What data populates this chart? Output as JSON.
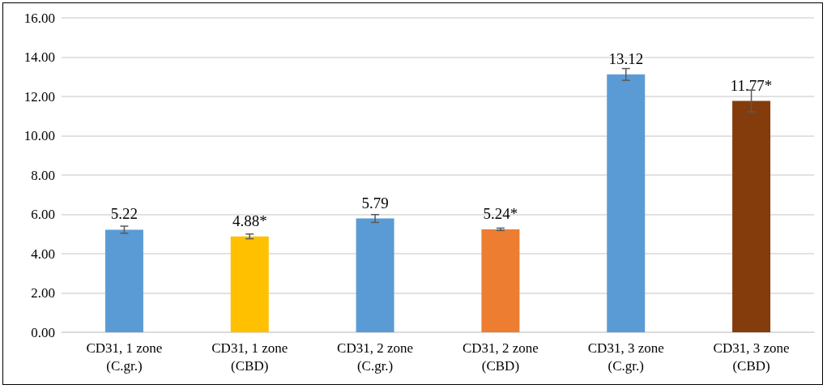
{
  "chart_data": {
    "type": "bar",
    "categories": [
      "CD31, 1 zone\n(C.gr.)",
      "CD31, 1 zone\n(CBD)",
      "CD31, 2 zone\n(C.gr.)",
      "CD31, 2 zone\n(CBD)",
      "CD31, 3 zone\n(C.gr.)",
      "CD31, 3 zone\n(CBD)"
    ],
    "values": [
      5.22,
      4.88,
      5.79,
      5.24,
      13.12,
      11.77
    ],
    "value_labels": [
      "5.22",
      "4.88*",
      "5.79",
      "5.24*",
      "13.12",
      "11.77*"
    ],
    "errors": [
      0.18,
      0.12,
      0.2,
      0.06,
      0.3,
      0.55
    ],
    "colors": [
      "#5b9bd5",
      "#ffc000",
      "#5b9bd5",
      "#ed7d31",
      "#5b9bd5",
      "#843c0c"
    ],
    "ylim": [
      0,
      16
    ],
    "yticks": [
      {
        "value": 0,
        "label": "0.00"
      },
      {
        "value": 2,
        "label": "2.00"
      },
      {
        "value": 4,
        "label": "4.00"
      },
      {
        "value": 6,
        "label": "6.00"
      },
      {
        "value": 8,
        "label": "8.00"
      },
      {
        "value": 10,
        "label": "10.00"
      },
      {
        "value": 12,
        "label": "12.00"
      },
      {
        "value": 14,
        "label": "14.00"
      },
      {
        "value": 16,
        "label": "16.00"
      }
    ],
    "grid": "y"
  }
}
